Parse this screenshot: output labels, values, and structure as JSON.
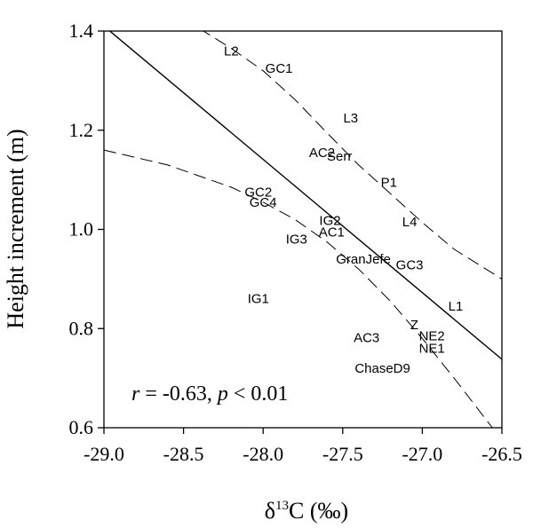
{
  "chart_data": {
    "type": "scatter",
    "title": "",
    "xlabel": {
      "prefix": "δ",
      "superscript": "13",
      "suffix": "C (‰)"
    },
    "ylabel": "Height increment (m)",
    "xlim": [
      -29.0,
      -26.5
    ],
    "ylim": [
      0.6,
      1.4
    ],
    "xticks": [
      "-29.0",
      "-28.5",
      "-28.0",
      "-27.5",
      "-27.0",
      "-26.5"
    ],
    "yticks": [
      "0.6",
      "0.8",
      "1.0",
      "1.2",
      "1.4"
    ],
    "grid": false,
    "legend": "none",
    "points": [
      {
        "label": "L2",
        "x": -28.2,
        "y": 1.36
      },
      {
        "label": "GC1",
        "x": -27.9,
        "y": 1.325
      },
      {
        "label": "L3",
        "x": -27.45,
        "y": 1.225
      },
      {
        "label": "AC2",
        "x": -27.63,
        "y": 1.155
      },
      {
        "label": "Serr",
        "x": -27.52,
        "y": 1.148
      },
      {
        "label": "P1",
        "x": -27.21,
        "y": 1.095
      },
      {
        "label": "GC2",
        "x": -28.03,
        "y": 1.075
      },
      {
        "label": "GC4",
        "x": -28.0,
        "y": 1.055
      },
      {
        "label": "IG2",
        "x": -27.58,
        "y": 1.018
      },
      {
        "label": "L4",
        "x": -27.08,
        "y": 1.015
      },
      {
        "label": "AC1",
        "x": -27.57,
        "y": 0.995
      },
      {
        "label": "IG3",
        "x": -27.79,
        "y": 0.98
      },
      {
        "label": "GranJefe",
        "x": -27.37,
        "y": 0.94
      },
      {
        "label": "GC3",
        "x": -27.08,
        "y": 0.928
      },
      {
        "label": "IG1",
        "x": -28.03,
        "y": 0.86
      },
      {
        "label": "L1",
        "x": -26.79,
        "y": 0.845
      },
      {
        "label": "Z",
        "x": -27.05,
        "y": 0.808
      },
      {
        "label": "NE2",
        "x": -26.94,
        "y": 0.785
      },
      {
        "label": "AC3",
        "x": -27.35,
        "y": 0.782
      },
      {
        "label": "NE1",
        "x": -26.94,
        "y": 0.76
      },
      {
        "label": "ChaseD9",
        "x": -27.25,
        "y": 0.72
      }
    ],
    "regression": {
      "x": [
        -29.0,
        -26.5
      ],
      "y": [
        1.41,
        0.738
      ]
    },
    "confidence_upper": {
      "x": [
        -28.4,
        -28.2,
        -28.0,
        -27.8,
        -27.6,
        -27.4,
        -27.2,
        -27.0,
        -26.8,
        -26.5
      ],
      "y": [
        1.405,
        1.365,
        1.32,
        1.262,
        1.195,
        1.13,
        1.072,
        1.014,
        0.96,
        0.9
      ]
    },
    "confidence_lower": {
      "x": [
        -29.0,
        -28.6,
        -28.2,
        -28.0,
        -27.8,
        -27.6,
        -27.4,
        -27.2,
        -27.0,
        -26.8,
        -26.56
      ],
      "y": [
        1.16,
        1.13,
        1.085,
        1.055,
        1.02,
        0.975,
        0.92,
        0.855,
        0.78,
        0.7,
        0.6
      ]
    },
    "annotation": {
      "r_symbol": "r",
      "r_value": " = -0.63, ",
      "p_symbol": "p",
      "p_value": " < 0.01"
    }
  }
}
